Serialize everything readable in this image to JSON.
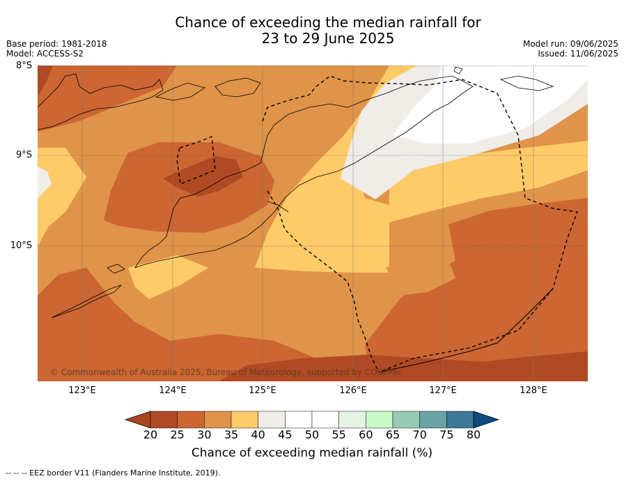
{
  "title": {
    "line1": "Chance of exceeding the median rainfall for",
    "line2": "23 to 29 June 2025"
  },
  "meta": {
    "base_period": "Base period: 1981-2018",
    "model": "Model: ACCESS-S2",
    "model_run": "Model run: 09/06/2025",
    "issued": "Issued: 11/06/2025"
  },
  "latitude_labels": [
    "8°S",
    "9°S",
    "10°S"
  ],
  "longitude_labels": [
    "123°E",
    "124°E",
    "125°E",
    "126°E",
    "127°E",
    "128°E"
  ],
  "credit": "© Commonwealth of Australia 2025, Bureau of Meteorology, supported by COSPPac",
  "colorbar": {
    "ticks": [
      "20",
      "25",
      "30",
      "35",
      "40",
      "45",
      "50",
      "55",
      "60",
      "65",
      "70",
      "75",
      "80"
    ],
    "colors": [
      "#a84522",
      "#b04a24",
      "#cc6633",
      "#e09449",
      "#fecb68",
      "#f0ede8",
      "#ffffff",
      "#ffffff",
      "#e6f4e6",
      "#c8fbc8",
      "#98cbb6",
      "#6aa3a6",
      "#3e7899",
      "#0e4a80"
    ],
    "label": "Chance of exceeding median rainfall (%)"
  },
  "footnote": "--  --  -- EEZ border V11 (Flanders Marine Institute, 2019).",
  "map_colors": {
    "c20_25": "#b04a24",
    "c25_30": "#cc6633",
    "c30_35": "#e09449",
    "c35_40": "#fecb68",
    "c40_45": "#f0ede8",
    "c45_55": "#ffffff"
  }
}
